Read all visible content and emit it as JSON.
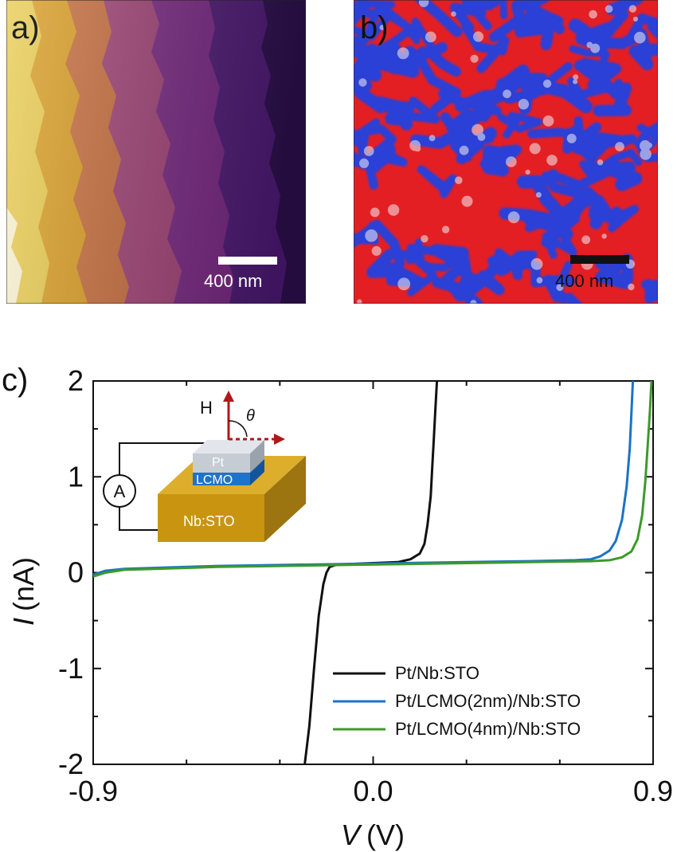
{
  "panel_a": {
    "label": "a)",
    "scale_bar": "400 nm"
  },
  "panel_b": {
    "label": "b)",
    "scale_bar": "400 nm"
  },
  "panel_c": {
    "label": "c)",
    "inset": {
      "field_label": "H",
      "angle_label": "θ",
      "ammeter_label": "A",
      "layer_top": "Pt",
      "layer_mid": "LCMO",
      "substrate": "Nb:STO"
    }
  },
  "colors": {
    "black_series": "#111111",
    "blue_series": "#1a73c8",
    "green_series": "#3c9a2a",
    "field_arrow": "#b01818",
    "substrate": "#c99510",
    "lcmo": "#1f73c9",
    "pt": "#c6ccd4"
  },
  "chart_data": {
    "type": "line",
    "title": "",
    "xlabel_symbol": "V",
    "xlabel_unit": "(V)",
    "ylabel_symbol": "I",
    "ylabel_unit": "(nA)",
    "xlim": [
      -0.9,
      0.9
    ],
    "ylim": [
      -2,
      2
    ],
    "x_ticks": [
      "-0.9",
      "0.0",
      "0.9"
    ],
    "x_tick_values": [
      -0.9,
      0.0,
      0.9
    ],
    "y_ticks": [
      "2",
      "1",
      "0",
      "-1",
      "-2"
    ],
    "y_tick_values": [
      2,
      1,
      0,
      -1,
      -2
    ],
    "legend_position": "bottom-right",
    "series": [
      {
        "name": "Pt/Nb:STO",
        "color": "#111111",
        "x": [
          -0.22,
          -0.205,
          -0.19,
          -0.175,
          -0.16,
          -0.15,
          -0.14,
          -0.12,
          -0.08,
          0.0,
          0.08,
          0.12,
          0.15,
          0.165,
          0.175,
          0.185,
          0.19,
          0.195,
          0.2,
          0.205
        ],
        "y": [
          -2.0,
          -1.6,
          -1.0,
          -0.45,
          -0.12,
          0.0,
          0.06,
          0.08,
          0.09,
          0.1,
          0.11,
          0.14,
          0.2,
          0.3,
          0.5,
          0.8,
          1.1,
          1.4,
          1.7,
          2.0
        ]
      },
      {
        "name": "Pt/LCMO(2nm)/Nb:STO",
        "color": "#1a73c8",
        "x": [
          -0.9,
          -0.86,
          -0.8,
          -0.7,
          -0.5,
          -0.3,
          -0.1,
          0.1,
          0.3,
          0.5,
          0.65,
          0.7,
          0.73,
          0.76,
          0.78,
          0.8,
          0.815,
          0.825,
          0.83,
          0.835
        ],
        "y": [
          -0.02,
          0.02,
          0.04,
          0.05,
          0.07,
          0.08,
          0.09,
          0.1,
          0.11,
          0.12,
          0.13,
          0.14,
          0.17,
          0.23,
          0.33,
          0.55,
          0.9,
          1.3,
          1.65,
          2.0
        ]
      },
      {
        "name": "Pt/LCMO(4nm)/Nb:STO",
        "color": "#3c9a2a",
        "x": [
          -0.9,
          -0.86,
          -0.8,
          -0.7,
          -0.5,
          -0.3,
          -0.1,
          0.1,
          0.3,
          0.5,
          0.7,
          0.76,
          0.8,
          0.83,
          0.85,
          0.865,
          0.875,
          0.883,
          0.89,
          0.895
        ],
        "y": [
          -0.04,
          0.0,
          0.03,
          0.04,
          0.06,
          0.07,
          0.08,
          0.09,
          0.1,
          0.11,
          0.12,
          0.13,
          0.16,
          0.22,
          0.35,
          0.6,
          0.95,
          1.35,
          1.7,
          2.0
        ]
      }
    ]
  }
}
